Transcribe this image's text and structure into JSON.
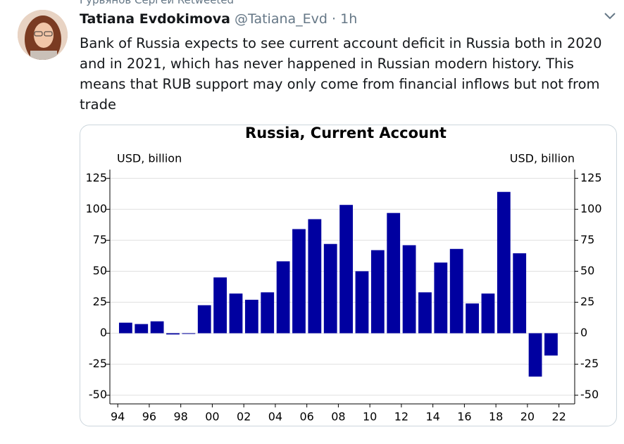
{
  "tweet": {
    "retweeted_by": "Гурьянов Сергей Retweeted",
    "name": "Tatiana Evdokimova",
    "handle": "@Tatiana_Evd",
    "separator": "·",
    "time": "1h",
    "text": "Bank of Russia expects to see current account deficit in Russia both in 2020 and in 2021, which has never happened in Russian modern history. This means that RUB support may only come from financial inflows but not from trade"
  },
  "chart_data": {
    "type": "bar",
    "title": "Russia, Current Account",
    "y_label": "USD, billion",
    "y2_label": "USD, billion",
    "x": [
      1994,
      1995,
      1996,
      1997,
      1998,
      1999,
      2000,
      2001,
      2002,
      2003,
      2004,
      2005,
      2006,
      2007,
      2008,
      2009,
      2010,
      2011,
      2012,
      2013,
      2014,
      2015,
      2016,
      2017,
      2018,
      2019,
      2020,
      2021
    ],
    "values": [
      8.5,
      7.4,
      9.6,
      -1,
      0,
      22.6,
      45,
      32,
      27,
      33,
      58,
      84,
      92,
      72,
      103.5,
      50,
      67,
      97,
      71,
      33,
      57,
      68,
      24,
      32,
      114,
      64.5,
      -35,
      -18
    ],
    "color": "#0000a0",
    "xlim": [
      1993.5,
      2023
    ],
    "xticks": [
      {
        "value": 1994,
        "label": "94"
      },
      {
        "value": 1996,
        "label": "96"
      },
      {
        "value": 1998,
        "label": "98"
      },
      {
        "value": 2000,
        "label": "00"
      },
      {
        "value": 2002,
        "label": "02"
      },
      {
        "value": 2004,
        "label": "04"
      },
      {
        "value": 2006,
        "label": "06"
      },
      {
        "value": 2008,
        "label": "08"
      },
      {
        "value": 2010,
        "label": "10"
      },
      {
        "value": 2012,
        "label": "12"
      },
      {
        "value": 2014,
        "label": "14"
      },
      {
        "value": 2016,
        "label": "16"
      },
      {
        "value": 2018,
        "label": "18"
      },
      {
        "value": 2020,
        "label": "20"
      },
      {
        "value": 2022,
        "label": "22"
      }
    ],
    "ylim": [
      -57,
      132
    ],
    "yticks": [
      -50,
      -25,
      0,
      25,
      50,
      75,
      100,
      125
    ],
    "y2lim": [
      -57,
      132
    ],
    "y2ticks": [
      -50,
      -25,
      0,
      25,
      50,
      75,
      100,
      125
    ],
    "grid": true
  }
}
